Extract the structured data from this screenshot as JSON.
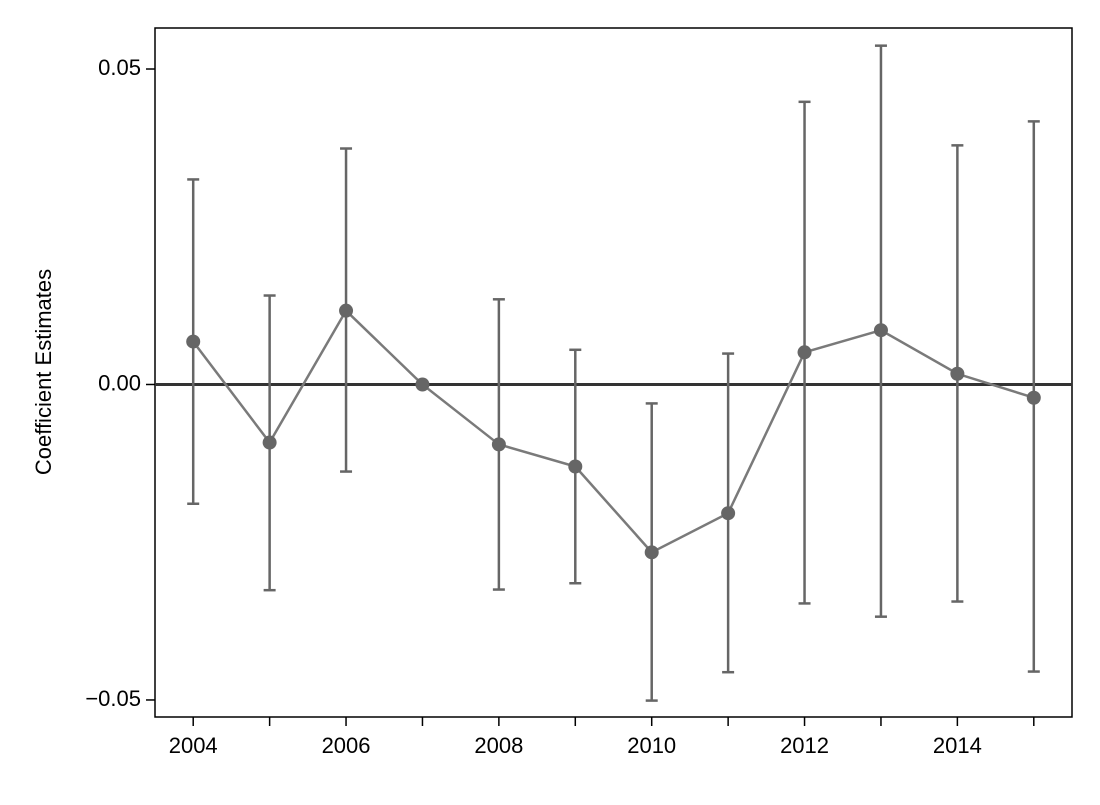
{
  "chart_data": {
    "type": "line",
    "ylabel": "Coefficient Estimates",
    "x": [
      2004,
      2005,
      2006,
      2007,
      2008,
      2009,
      2010,
      2011,
      2012,
      2013,
      2014,
      2015
    ],
    "series": [
      {
        "color": "#7a7a7a",
        "marker_color": "#666666",
        "errorbar_color": "#666666",
        "values": [
          0.0068,
          -0.0092,
          0.0117,
          0,
          -0.0095,
          -0.013,
          -0.0266,
          -0.0204,
          0.0051,
          0.0086,
          0.0017,
          -0.0021
        ],
        "ci_upper": [
          0.0325,
          0.0141,
          0.0374,
          null,
          0.0135,
          0.0055,
          -0.003,
          0.0049,
          0.0448,
          0.0537,
          0.0379,
          0.0417
        ],
        "ci_lower": [
          -0.0189,
          -0.0326,
          -0.0138,
          null,
          -0.0325,
          -0.0315,
          -0.0501,
          -0.0456,
          -0.0347,
          -0.0368,
          -0.0344,
          -0.0455
        ]
      }
    ],
    "xlim": [
      2003.5,
      2015.5
    ],
    "xticks": [
      2004,
      2006,
      2008,
      2010,
      2012,
      2014
    ],
    "xminorticks": [
      2005,
      2007,
      2009,
      2011,
      2013,
      2015
    ],
    "ylim": [
      -0.0527,
      0.0565
    ],
    "yticks": [
      {
        "value": -0.05,
        "label": "−0.05"
      },
      {
        "value": 0,
        "label": "0.00"
      },
      0.05
    ],
    "reference_line": 0,
    "reference_line_color": "#333333",
    "grid": false
  }
}
